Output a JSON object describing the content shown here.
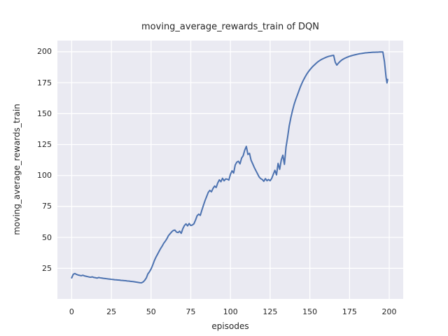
{
  "chart_data": {
    "type": "line",
    "title": "moving_average_rewards_train of DQN",
    "xlabel": "episodes",
    "ylabel": "moving_average_rewards_train",
    "x_ticks": [
      0,
      25,
      50,
      75,
      100,
      125,
      150,
      175,
      200
    ],
    "y_ticks": [
      25,
      50,
      75,
      100,
      125,
      150,
      175,
      200
    ],
    "xlim": [
      -9.0,
      208.8
    ],
    "ylim": [
      0.3,
      209.0
    ],
    "grid": true,
    "legend_position": "none",
    "style": {
      "plot_background": "#EAEAF2",
      "grid_color": "#FFFFFF",
      "line_color": "#4C72B0",
      "text_color": "#262626",
      "figure_background": "#FFFFFF"
    },
    "series": [
      {
        "name": "moving_average_rewards_train",
        "points": [
          [
            0,
            17.3
          ],
          [
            1,
            20.2
          ],
          [
            2,
            20.8
          ],
          [
            3,
            20.1
          ],
          [
            4,
            19.6
          ],
          [
            5,
            19.3
          ],
          [
            6,
            19.0
          ],
          [
            7,
            19.4
          ],
          [
            8,
            18.9
          ],
          [
            9,
            18.6
          ],
          [
            10,
            18.3
          ],
          [
            11,
            18.0
          ],
          [
            12,
            17.8
          ],
          [
            13,
            18.1
          ],
          [
            14,
            17.6
          ],
          [
            15,
            17.4
          ],
          [
            16,
            17.1
          ],
          [
            17,
            17.6
          ],
          [
            18,
            17.3
          ],
          [
            19,
            17.1
          ],
          [
            20,
            16.9
          ],
          [
            21,
            16.8
          ],
          [
            22,
            16.6
          ],
          [
            23,
            16.4
          ],
          [
            24,
            16.3
          ],
          [
            25,
            16.1
          ],
          [
            26,
            16.0
          ],
          [
            27,
            15.8
          ],
          [
            28,
            15.7
          ],
          [
            29,
            15.6
          ],
          [
            30,
            15.5
          ],
          [
            31,
            15.3
          ],
          [
            32,
            15.2
          ],
          [
            33,
            15.1
          ],
          [
            34,
            15.0
          ],
          [
            35,
            14.8
          ],
          [
            36,
            14.7
          ],
          [
            37,
            14.5
          ],
          [
            38,
            14.4
          ],
          [
            39,
            14.2
          ],
          [
            40,
            14.0
          ],
          [
            41,
            13.8
          ],
          [
            42,
            13.6
          ],
          [
            43,
            13.4
          ],
          [
            44,
            13.3
          ],
          [
            45,
            14.0
          ],
          [
            46,
            15.3
          ],
          [
            47,
            17.2
          ],
          [
            48,
            20.5
          ],
          [
            49,
            22.2
          ],
          [
            50,
            24.5
          ],
          [
            51,
            27.5
          ],
          [
            52,
            31.0
          ],
          [
            53,
            33.8
          ],
          [
            54,
            36.2
          ],
          [
            55,
            38.6
          ],
          [
            56,
            41.0
          ],
          [
            57,
            43.0
          ],
          [
            58,
            45.3
          ],
          [
            59,
            47.0
          ],
          [
            60,
            49.0
          ],
          [
            61,
            51.5
          ],
          [
            62,
            53.0
          ],
          [
            63,
            54.5
          ],
          [
            64,
            55.6
          ],
          [
            65,
            55.9
          ],
          [
            66,
            54.3
          ],
          [
            67,
            53.9
          ],
          [
            68,
            55.0
          ],
          [
            69,
            53.3
          ],
          [
            70,
            57.0
          ],
          [
            71,
            59.6
          ],
          [
            72,
            60.9
          ],
          [
            73,
            59.3
          ],
          [
            74,
            61.2
          ],
          [
            75,
            59.6
          ],
          [
            76,
            60.0
          ],
          [
            77,
            61.0
          ],
          [
            78,
            64.0
          ],
          [
            79,
            67.5
          ],
          [
            80,
            68.8
          ],
          [
            81,
            67.8
          ],
          [
            82,
            72.0
          ],
          [
            83,
            76.0
          ],
          [
            84,
            79.8
          ],
          [
            85,
            83.0
          ],
          [
            86,
            86.3
          ],
          [
            87,
            88.0
          ],
          [
            88,
            86.8
          ],
          [
            89,
            89.5
          ],
          [
            90,
            91.5
          ],
          [
            91,
            90.3
          ],
          [
            92,
            94.0
          ],
          [
            93,
            96.5
          ],
          [
            94,
            95.0
          ],
          [
            95,
            97.8
          ],
          [
            96,
            95.7
          ],
          [
            97,
            97.2
          ],
          [
            98,
            97.0
          ],
          [
            99,
            96.3
          ],
          [
            100,
            101.0
          ],
          [
            101,
            103.8
          ],
          [
            102,
            102.0
          ],
          [
            103,
            108.5
          ],
          [
            104,
            110.8
          ],
          [
            105,
            111.5
          ],
          [
            106,
            109.4
          ],
          [
            107,
            114.0
          ],
          [
            108,
            116.0
          ],
          [
            109,
            120.5
          ],
          [
            110,
            123.5
          ],
          [
            111,
            117.0
          ],
          [
            112,
            117.9
          ],
          [
            113,
            112.3
          ],
          [
            114,
            109.5
          ],
          [
            115,
            106.5
          ],
          [
            116,
            104.0
          ],
          [
            117,
            101.5
          ],
          [
            118,
            99.0
          ],
          [
            119,
            97.5
          ],
          [
            120,
            96.8
          ],
          [
            121,
            95.3
          ],
          [
            122,
            97.5
          ],
          [
            123,
            95.8
          ],
          [
            124,
            96.8
          ],
          [
            125,
            95.8
          ],
          [
            126,
            97.7
          ],
          [
            127,
            101.0
          ],
          [
            128,
            104.2
          ],
          [
            129,
            100.5
          ],
          [
            130,
            109.8
          ],
          [
            131,
            105.0
          ],
          [
            132,
            112.5
          ],
          [
            133,
            116.4
          ],
          [
            134,
            109.0
          ],
          [
            135,
            123.0
          ],
          [
            136,
            131.0
          ],
          [
            137,
            140.0
          ],
          [
            138,
            146.5
          ],
          [
            139,
            152.0
          ],
          [
            140,
            157.0
          ],
          [
            141,
            161.0
          ],
          [
            142,
            164.5
          ],
          [
            143,
            168.0
          ],
          [
            144,
            171.5
          ],
          [
            145,
            174.5
          ],
          [
            146,
            177.2
          ],
          [
            147,
            179.6
          ],
          [
            148,
            181.8
          ],
          [
            149,
            183.7
          ],
          [
            150,
            185.4
          ],
          [
            151,
            186.9
          ],
          [
            152,
            188.3
          ],
          [
            153,
            189.5
          ],
          [
            154,
            190.7
          ],
          [
            155,
            191.8
          ],
          [
            156,
            192.7
          ],
          [
            157,
            193.5
          ],
          [
            158,
            194.2
          ],
          [
            159,
            194.8
          ],
          [
            160,
            195.4
          ],
          [
            161,
            195.9
          ],
          [
            162,
            196.3
          ],
          [
            163,
            196.6
          ],
          [
            164,
            196.9
          ],
          [
            165,
            197.1
          ],
          [
            166,
            191.5
          ],
          [
            167,
            189.2
          ],
          [
            168,
            190.8
          ],
          [
            169,
            192.1
          ],
          [
            170,
            193.2
          ],
          [
            171,
            194.0
          ],
          [
            172,
            194.7
          ],
          [
            173,
            195.3
          ],
          [
            174,
            195.8
          ],
          [
            175,
            196.3
          ],
          [
            176,
            196.7
          ],
          [
            177,
            197.1
          ],
          [
            178,
            197.4
          ],
          [
            179,
            197.7
          ],
          [
            180,
            198.0
          ],
          [
            181,
            198.3
          ],
          [
            182,
            198.5
          ],
          [
            183,
            198.7
          ],
          [
            184,
            198.9
          ],
          [
            185,
            199.1
          ],
          [
            186,
            199.2
          ],
          [
            187,
            199.3
          ],
          [
            188,
            199.4
          ],
          [
            189,
            199.5
          ],
          [
            190,
            199.6
          ],
          [
            191,
            199.6
          ],
          [
            192,
            199.7
          ],
          [
            193,
            199.7
          ],
          [
            194,
            199.8
          ],
          [
            195,
            199.8
          ],
          [
            196,
            199.8
          ],
          [
            197,
            192.0
          ],
          [
            198,
            179.5
          ],
          [
            198.6,
            174.8
          ],
          [
            199,
            177.6
          ]
        ]
      }
    ]
  }
}
